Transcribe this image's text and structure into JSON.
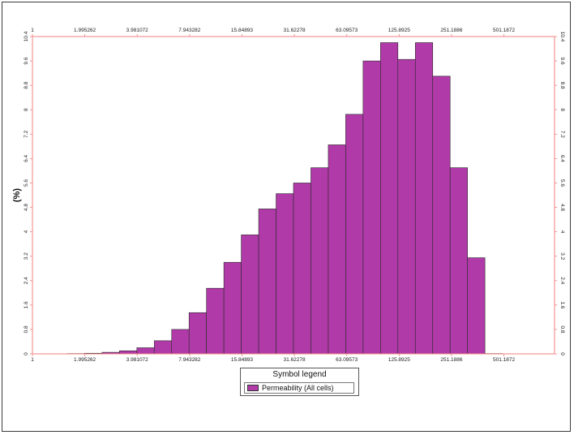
{
  "chart_data": {
    "type": "bar",
    "xscale": "log",
    "ylabel": "(%)",
    "xlim": [
      1,
      1000
    ],
    "ylim": [
      0,
      10.4
    ],
    "x_ticks": [
      "1",
      "1.995262",
      "3.981072",
      "7.943282",
      "15.84893",
      "31.62278",
      "63.09573",
      "125.8925",
      "251.1886",
      "501.1872"
    ],
    "y_ticks": [
      "0",
      "0.8",
      "1.6",
      "2.4",
      "3.2",
      "4",
      "4.8",
      "5.6",
      "6.4",
      "7.2",
      "8",
      "8.8",
      "9.6",
      "10.4"
    ],
    "bar_color": "#b03aa8",
    "frame_color": "#f08080",
    "bins": [
      {
        "x0": 1.585,
        "x1": 1.995,
        "value": 0.01
      },
      {
        "x0": 1.995,
        "x1": 2.512,
        "value": 0.02
      },
      {
        "x0": 2.512,
        "x1": 3.162,
        "value": 0.05
      },
      {
        "x0": 3.162,
        "x1": 3.981,
        "value": 0.1
      },
      {
        "x0": 3.981,
        "x1": 5.012,
        "value": 0.2
      },
      {
        "x0": 5.012,
        "x1": 6.31,
        "value": 0.43
      },
      {
        "x0": 6.31,
        "x1": 7.943,
        "value": 0.8
      },
      {
        "x0": 7.943,
        "x1": 10.0,
        "value": 1.35
      },
      {
        "x0": 10.0,
        "x1": 12.589,
        "value": 2.15
      },
      {
        "x0": 12.589,
        "x1": 15.849,
        "value": 3.0
      },
      {
        "x0": 15.849,
        "x1": 19.953,
        "value": 3.9
      },
      {
        "x0": 19.953,
        "x1": 25.119,
        "value": 4.75
      },
      {
        "x0": 25.119,
        "x1": 31.623,
        "value": 5.25
      },
      {
        "x0": 31.623,
        "x1": 39.811,
        "value": 5.6
      },
      {
        "x0": 39.811,
        "x1": 50.119,
        "value": 6.1
      },
      {
        "x0": 50.119,
        "x1": 63.096,
        "value": 6.85
      },
      {
        "x0": 63.096,
        "x1": 79.433,
        "value": 7.85
      },
      {
        "x0": 79.433,
        "x1": 100.0,
        "value": 9.6
      },
      {
        "x0": 100.0,
        "x1": 125.893,
        "value": 10.2
      },
      {
        "x0": 125.893,
        "x1": 158.489,
        "value": 9.65
      },
      {
        "x0": 158.489,
        "x1": 199.526,
        "value": 10.2
      },
      {
        "x0": 199.526,
        "x1": 251.189,
        "value": 9.1
      },
      {
        "x0": 251.189,
        "x1": 316.228,
        "value": 6.1
      },
      {
        "x0": 316.228,
        "x1": 398.107,
        "value": 3.15
      },
      {
        "x0": 398.107,
        "x1": 501.187,
        "value": 0.01
      }
    ],
    "legend": {
      "title": "Symbol legend",
      "entries": [
        "Permeability (All cells)"
      ]
    }
  }
}
